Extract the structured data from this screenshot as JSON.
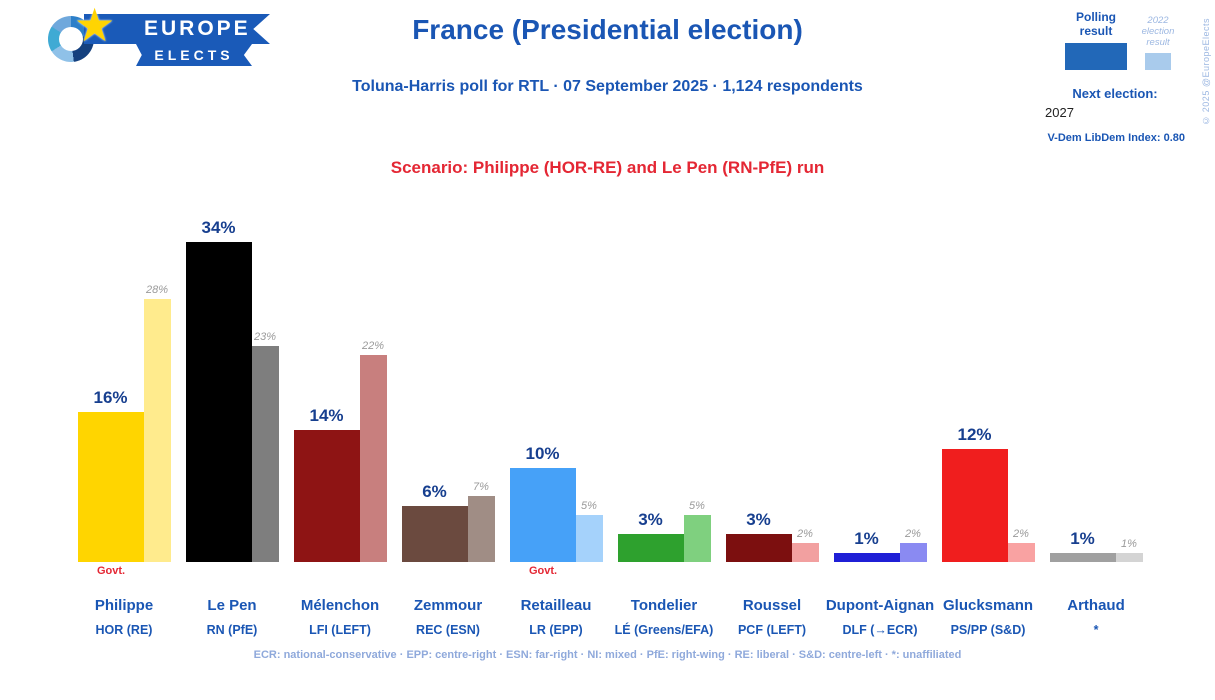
{
  "header": {
    "logo": {
      "line1": "EUROPE",
      "line2": "ELECTS"
    },
    "title": "France (Presidential election)",
    "subtitle": "Toluna-Harris poll for RTL · 07 September 2025 · 1,124 respondents",
    "scenario": "Scenario: Philippe (HOR-RE) and Le Pen (RN-PfE) run"
  },
  "legend": {
    "polling_label": "Polling result",
    "election_label": "2022 election result",
    "next_election_label": "Next election:",
    "next_election_year": "2027",
    "vdem": "V-Dem LibDem Index: 0.80",
    "copyright": "© 2025 @EuropeElects"
  },
  "footer": "ECR: national-conservative · EPP: centre-right · ESN: far-right · NI: mixed · PfE: right-wing · RE: liberal · S&D: centre-left · *: unaffiliated",
  "colors": {
    "brand_blue": "#1A56B4",
    "value_label_navy": "#173F8F",
    "accent_red": "#E42734",
    "legend_poll_bar": "#2268B8",
    "legend_election_bar": "#A9CBEC",
    "footer_text": "#8FA9DB",
    "star_gold": "#FFD402"
  },
  "chart_data": {
    "type": "bar",
    "title": "France (Presidential election)",
    "subtitle": "Toluna-Harris poll for RTL · 07 September 2025 · 1,124 respondents",
    "unit": "%",
    "ylim": [
      0,
      34
    ],
    "grid": false,
    "legend_position": "top-right",
    "govt_label": "Govt.",
    "series_names": [
      "Polling result",
      "2022 election result"
    ],
    "candidates": [
      {
        "name": "Philippe",
        "party": "HOR (RE)",
        "value": 16,
        "prev": 28,
        "color": "#FFD500",
        "prev_color": "#FFEB8D",
        "govt": true
      },
      {
        "name": "Le Pen",
        "party": "RN (PfE)",
        "value": 34,
        "prev": 23,
        "color": "#000000",
        "prev_color": "#7E7E7E",
        "govt": false
      },
      {
        "name": "Mélenchon",
        "party": "LFI (LEFT)",
        "value": 14,
        "prev": 22,
        "color": "#8E1414",
        "prev_color": "#C87F7E",
        "govt": false
      },
      {
        "name": "Zemmour",
        "party": "REC (ESN)",
        "value": 6,
        "prev": 7,
        "color": "#6B4A3F",
        "prev_color": "#A08D85",
        "govt": false
      },
      {
        "name": "Retailleau",
        "party": "LR (EPP)",
        "value": 10,
        "prev": 5,
        "color": "#46A1F8",
        "prev_color": "#A5D2FB",
        "govt": true
      },
      {
        "name": "Tondelier",
        "party": "LÉ (Greens/EFA)",
        "value": 3,
        "prev": 5,
        "color": "#2EA12E",
        "prev_color": "#7FD07F",
        "govt": false
      },
      {
        "name": "Roussel",
        "party": "PCF (LEFT)",
        "value": 3,
        "prev": 2,
        "color": "#7C0F0F",
        "prev_color": "#F2A0A0",
        "govt": false
      },
      {
        "name": "Dupont-Aignan",
        "party": "DLF (→ECR)",
        "value": 1,
        "prev": 2,
        "color": "#1F1FD6",
        "prev_color": "#8A8AF2",
        "govt": false
      },
      {
        "name": "Glucksmann",
        "party": "PS/PP (S&D)",
        "value": 12,
        "prev": 2,
        "color": "#F01E1E",
        "prev_color": "#F9A2A2",
        "govt": false
      },
      {
        "name": "Arthaud",
        "party": "*",
        "value": 1,
        "prev": 1,
        "color": "#A0A0A0",
        "prev_color": "#D4D4D4",
        "govt": false
      }
    ]
  }
}
